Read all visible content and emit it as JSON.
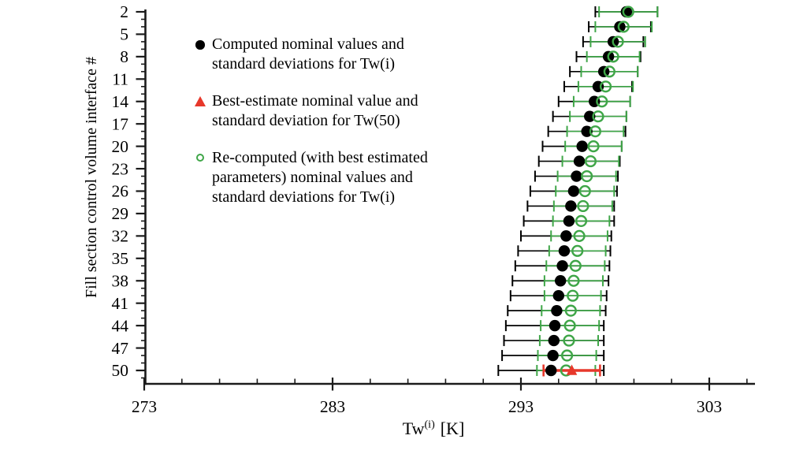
{
  "figure": {
    "background": "#ffffff",
    "axis_color": "#1b1b1b",
    "x_axis": {
      "label_base": "Tw",
      "label_sup": "(i)",
      "label_unit": "[K]",
      "tick_labels": [
        "273",
        "283",
        "293",
        "303"
      ]
    },
    "y_axis": {
      "label": "Fill section control volume interface #",
      "tick_labels": [
        "2",
        "5",
        "8",
        "11",
        "14",
        "17",
        "20",
        "23",
        "26",
        "29",
        "32",
        "35",
        "38",
        "41",
        "44",
        "47",
        "50"
      ]
    },
    "legend": {
      "items": [
        {
          "marker": "black-filled-circle",
          "color": "#000000",
          "text": "Computed nominal values and standard deviations for Tw(i)"
        },
        {
          "marker": "red-filled-triangle",
          "color": "#e7382b",
          "text": "Best-estimate nominal value and standard deviation for Tw(50)"
        },
        {
          "marker": "green-open-circle",
          "color": "#3fa648",
          "text": "Re-computed (with best estimated parameters) nominal values and standard deviations for Tw(i)"
        }
      ]
    }
  },
  "chart_data": {
    "type": "scatter",
    "title": "",
    "xlabel": "Tw(i) [K]",
    "ylabel": "Fill section control volume interface #",
    "xlim": [
      273,
      305
    ],
    "x_ticks": [
      273,
      283,
      293,
      303
    ],
    "x_minor_step": 2,
    "y_ticks": [
      2,
      5,
      8,
      11,
      14,
      17,
      20,
      23,
      26,
      29,
      32,
      35,
      38,
      41,
      44,
      47,
      50
    ],
    "y_range": [
      2,
      51
    ],
    "y_minor_step": 1,
    "grid": false,
    "legend_position": "upper-left-inside",
    "point_format": "[interface_number, nominal_value_K, standard_deviation_K]",
    "series": [
      {
        "name": "Computed nominal values and standard deviations for Tw(i)",
        "marker": "filled-circle",
        "color": "#000000",
        "points": [
          [
            2,
            298.6,
            1.65
          ],
          [
            4,
            298.25,
            1.65
          ],
          [
            6,
            297.9,
            1.6
          ],
          [
            8,
            297.65,
            1.7
          ],
          [
            10,
            297.4,
            1.8
          ],
          [
            12,
            297.1,
            1.8
          ],
          [
            14,
            296.9,
            1.9
          ],
          [
            16,
            296.65,
            1.95
          ],
          [
            18,
            296.5,
            2.05
          ],
          [
            20,
            296.25,
            2.1
          ],
          [
            22,
            296.1,
            2.15
          ],
          [
            24,
            295.95,
            2.2
          ],
          [
            26,
            295.8,
            2.3
          ],
          [
            28,
            295.65,
            2.3
          ],
          [
            30,
            295.55,
            2.4
          ],
          [
            32,
            295.4,
            2.4
          ],
          [
            34,
            295.3,
            2.45
          ],
          [
            36,
            295.2,
            2.5
          ],
          [
            38,
            295.1,
            2.55
          ],
          [
            40,
            295.0,
            2.55
          ],
          [
            42,
            294.9,
            2.6
          ],
          [
            44,
            294.8,
            2.6
          ],
          [
            46,
            294.75,
            2.65
          ],
          [
            48,
            294.7,
            2.7
          ],
          [
            50,
            294.6,
            2.8
          ]
        ]
      },
      {
        "name": "Re-computed (with best estimated parameters) nominal values and standard deviations for Tw(i)",
        "marker": "open-circle",
        "color": "#3fa648",
        "points": [
          [
            2,
            298.7,
            1.55
          ],
          [
            4,
            298.45,
            1.5
          ],
          [
            6,
            298.15,
            1.45
          ],
          [
            8,
            297.9,
            1.4
          ],
          [
            10,
            297.7,
            1.5
          ],
          [
            12,
            297.5,
            1.45
          ],
          [
            14,
            297.3,
            1.5
          ],
          [
            16,
            297.1,
            1.5
          ],
          [
            18,
            296.95,
            1.5
          ],
          [
            20,
            296.85,
            1.5
          ],
          [
            22,
            296.7,
            1.5
          ],
          [
            24,
            296.5,
            1.55
          ],
          [
            26,
            296.4,
            1.55
          ],
          [
            28,
            296.3,
            1.55
          ],
          [
            30,
            296.2,
            1.5
          ],
          [
            32,
            296.1,
            1.5
          ],
          [
            34,
            296.0,
            1.5
          ],
          [
            36,
            295.9,
            1.55
          ],
          [
            38,
            295.8,
            1.55
          ],
          [
            40,
            295.75,
            1.5
          ],
          [
            42,
            295.65,
            1.55
          ],
          [
            44,
            295.6,
            1.55
          ],
          [
            46,
            295.55,
            1.55
          ],
          [
            48,
            295.45,
            1.55
          ],
          [
            50,
            295.4,
            1.55
          ]
        ]
      },
      {
        "name": "Best-estimate nominal value and standard deviation for Tw(50)",
        "marker": "filled-triangle",
        "color": "#e7382b",
        "points": [
          [
            50,
            295.7,
            1.5
          ]
        ]
      }
    ]
  }
}
